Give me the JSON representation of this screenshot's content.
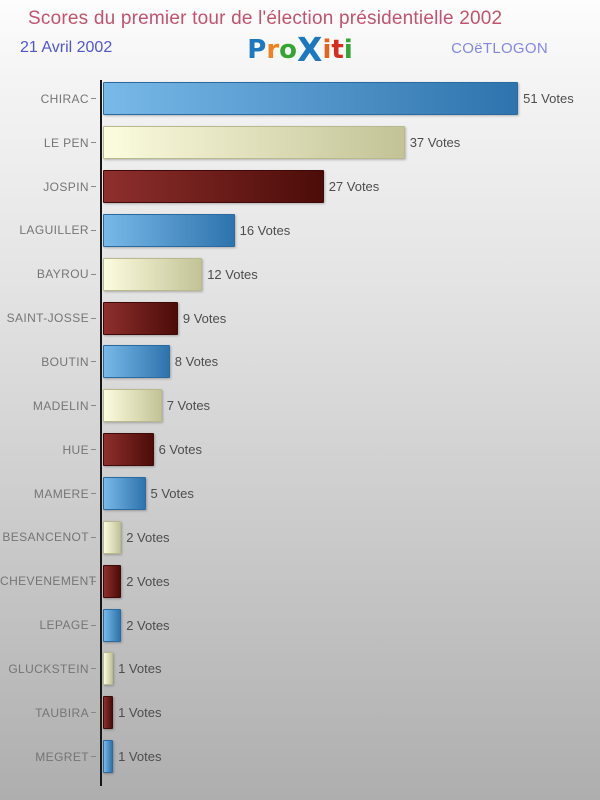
{
  "header": {
    "title": "Scores du premier tour de l'élection présidentielle 2002",
    "date": "21 Avril 2002",
    "org": "COëTLOGON",
    "logo_letters": [
      {
        "ch": "P",
        "color": "#1c79c0",
        "big": false
      },
      {
        "ch": "r",
        "color": "#f08221",
        "big": false
      },
      {
        "ch": "o",
        "color": "#33a532",
        "big": false
      },
      {
        "ch": "X",
        "color": "#1c79c0",
        "big": true
      },
      {
        "ch": "i",
        "color": "#e8621a",
        "big": false
      },
      {
        "ch": "t",
        "color": "#d62d1e",
        "big": false
      },
      {
        "ch": "i",
        "color": "#33a532",
        "big": false
      }
    ]
  },
  "chart_data": {
    "type": "bar",
    "orientation": "horizontal",
    "title": "Scores du premier tour de l'élection présidentielle 2002",
    "unit_suffix": "Votes",
    "categories": [
      "CHIRAC",
      "LE PEN",
      "JOSPIN",
      "LAGUILLER",
      "BAYROU",
      "SAINT-JOSSE",
      "BOUTIN",
      "MADELIN",
      "HUE",
      "MAMERE",
      "BESANCENOT",
      "CHEVENEMENT",
      "LEPAGE",
      "GLUCKSTEIN",
      "TAUBIRA",
      "MEGRET"
    ],
    "values": [
      51,
      37,
      27,
      16,
      12,
      9,
      8,
      7,
      6,
      5,
      2,
      2,
      2,
      1,
      1,
      1
    ],
    "xlim": [
      0,
      51
    ],
    "grid": false,
    "legend": false,
    "color_cycle": [
      "blue",
      "cream",
      "darkred"
    ],
    "palette": {
      "blue": {
        "from": "#78b9e8",
        "to": "#2e73ad",
        "border": "#2b6aa0"
      },
      "cream": {
        "from": "#fcfcdf",
        "to": "#c3c397",
        "border": "#b9b98e"
      },
      "darkred": {
        "from": "#8e2f2d",
        "to": "#4c0c08",
        "border": "#3f0a07"
      }
    }
  }
}
